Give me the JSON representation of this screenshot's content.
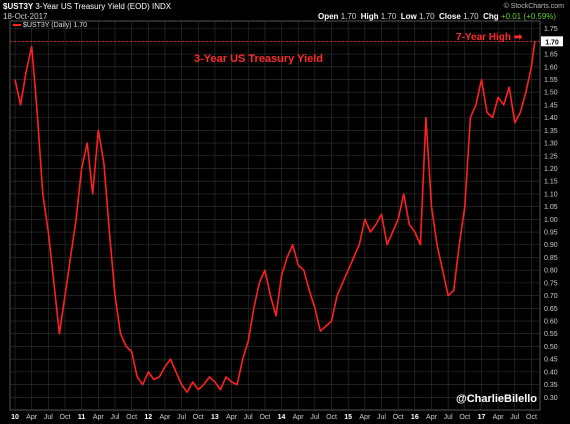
{
  "header": {
    "symbol": "$UST3Y",
    "name": "3-Year US Treasury Yield (EOD)",
    "exchange": "INDX",
    "date": "18-Oct-2017",
    "open_label": "Open",
    "open": "1.70",
    "high_label": "High",
    "high": "1.70",
    "low_label": "Low",
    "low": "1.70",
    "close_label": "Close",
    "close": "1.70",
    "chg_label": "Chg",
    "chg": "+0.01 (+0.59%)",
    "credit": "© StockCharts.com"
  },
  "legend": "$UST3Y (Daily) 1.70",
  "handle": "@CharlieBilello",
  "colors": {
    "line": "#ff2020",
    "grid": "#333333",
    "bg": "#000000",
    "refline": "#ff2a2a",
    "chg": "#66cc33"
  },
  "chart_data": {
    "type": "line",
    "title": "3-Year US Treasury Yield",
    "annotation": "7-Year High",
    "reference_line": 1.7,
    "last_value_label": "1.70",
    "ylim": [
      0.25,
      1.78
    ],
    "yticks": [
      "1.75",
      "1.70",
      "1.65",
      "1.60",
      "1.55",
      "1.50",
      "1.45",
      "1.40",
      "1.35",
      "1.30",
      "1.25",
      "1.20",
      "1.15",
      "1.10",
      "1.05",
      "1.00",
      "0.95",
      "0.90",
      "0.85",
      "0.80",
      "0.75",
      "0.70",
      "0.65",
      "0.60",
      "0.55",
      "0.50",
      "0.45",
      "0.40",
      "0.35",
      "0.30"
    ],
    "xlim": [
      0,
      94
    ],
    "xticks": [
      {
        "label": "10",
        "x": 0,
        "bold": true
      },
      {
        "label": "Apr",
        "x": 3
      },
      {
        "label": "Jul",
        "x": 6
      },
      {
        "label": "Oct",
        "x": 9
      },
      {
        "label": "11",
        "x": 12,
        "bold": true
      },
      {
        "label": "Apr",
        "x": 15
      },
      {
        "label": "Jul",
        "x": 18
      },
      {
        "label": "Oct",
        "x": 21
      },
      {
        "label": "12",
        "x": 24,
        "bold": true
      },
      {
        "label": "Apr",
        "x": 27
      },
      {
        "label": "Jul",
        "x": 30
      },
      {
        "label": "Oct",
        "x": 33
      },
      {
        "label": "13",
        "x": 36,
        "bold": true
      },
      {
        "label": "Apr",
        "x": 39
      },
      {
        "label": "Jul",
        "x": 42
      },
      {
        "label": "Oct",
        "x": 45
      },
      {
        "label": "14",
        "x": 48,
        "bold": true
      },
      {
        "label": "Apr",
        "x": 51
      },
      {
        "label": "Jul",
        "x": 54
      },
      {
        "label": "Oct",
        "x": 57
      },
      {
        "label": "15",
        "x": 60,
        "bold": true
      },
      {
        "label": "Apr",
        "x": 63
      },
      {
        "label": "Jul",
        "x": 66
      },
      {
        "label": "Oct",
        "x": 69
      },
      {
        "label": "16",
        "x": 72,
        "bold": true
      },
      {
        "label": "Apr",
        "x": 75
      },
      {
        "label": "Jul",
        "x": 78
      },
      {
        "label": "Oct",
        "x": 81
      },
      {
        "label": "17",
        "x": 84,
        "bold": true
      },
      {
        "label": "Apr",
        "x": 87
      },
      {
        "label": "Jul",
        "x": 90
      },
      {
        "label": "Oct",
        "x": 93
      }
    ],
    "series": [
      {
        "x": [
          0,
          1,
          2,
          3,
          4,
          5,
          6,
          7,
          8,
          9,
          10,
          11,
          12,
          13,
          14,
          15,
          16,
          17,
          18,
          19,
          20,
          21,
          22,
          23,
          24,
          25,
          26,
          27,
          28,
          29,
          30,
          31,
          32,
          33,
          34,
          35,
          36,
          37,
          38,
          39,
          40,
          41,
          42,
          43,
          44,
          45,
          46,
          47,
          48,
          49,
          50,
          51,
          52,
          53,
          54,
          55,
          56,
          57,
          58,
          59,
          60,
          61,
          62,
          63,
          64,
          65,
          66,
          67,
          68,
          69,
          70,
          71,
          72,
          73,
          74,
          75,
          76,
          77,
          78,
          79,
          80,
          81,
          82,
          83,
          84,
          85,
          86,
          87,
          88,
          89,
          90,
          91,
          92,
          93,
          93.6
        ],
        "values": [
          1.55,
          1.45,
          1.58,
          1.68,
          1.42,
          1.1,
          0.95,
          0.75,
          0.55,
          0.7,
          0.85,
          1.0,
          1.2,
          1.3,
          1.1,
          1.35,
          1.22,
          0.95,
          0.7,
          0.55,
          0.5,
          0.48,
          0.38,
          0.35,
          0.4,
          0.37,
          0.38,
          0.42,
          0.45,
          0.4,
          0.35,
          0.32,
          0.36,
          0.33,
          0.35,
          0.38,
          0.36,
          0.33,
          0.38,
          0.36,
          0.35,
          0.45,
          0.52,
          0.65,
          0.75,
          0.8,
          0.7,
          0.62,
          0.78,
          0.85,
          0.9,
          0.82,
          0.8,
          0.72,
          0.65,
          0.56,
          0.58,
          0.6,
          0.7,
          0.75,
          0.8,
          0.85,
          0.9,
          1.0,
          0.95,
          0.98,
          1.02,
          0.9,
          0.95,
          1.0,
          1.1,
          0.98,
          0.95,
          0.9,
          1.4,
          1.05,
          0.9,
          0.8,
          0.7,
          0.72,
          0.9,
          1.05,
          1.4,
          1.45,
          1.55,
          1.42,
          1.4,
          1.48,
          1.45,
          1.52,
          1.38,
          1.42,
          1.5,
          1.6,
          1.7
        ]
      }
    ],
    "grid": true
  }
}
